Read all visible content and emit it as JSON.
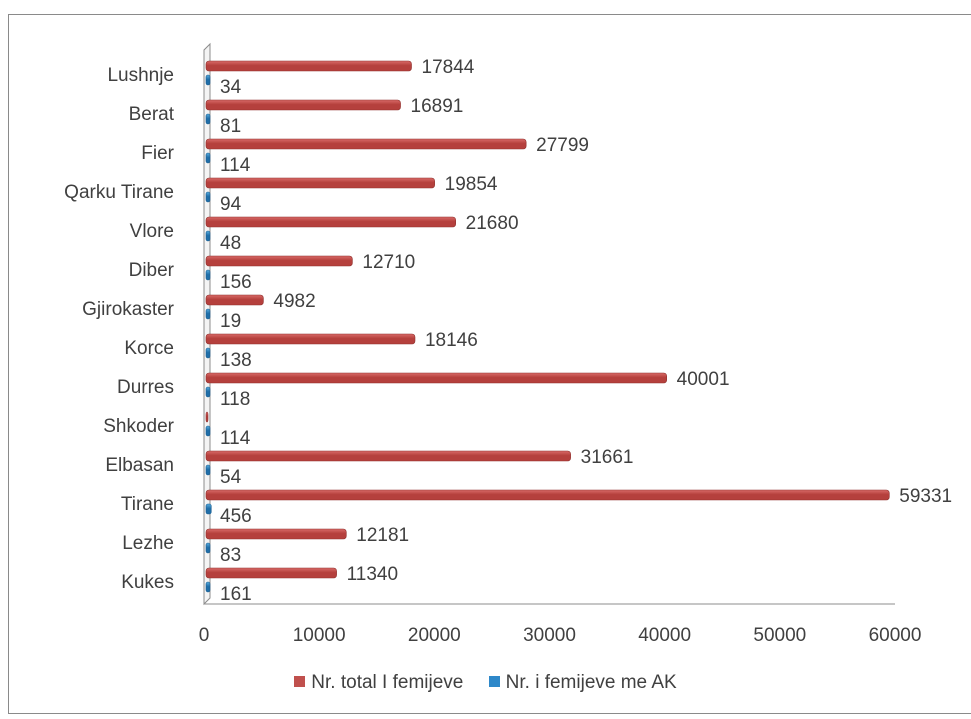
{
  "chart_data": {
    "type": "bar",
    "orientation": "horizontal",
    "categories": [
      "Lushnje",
      "Berat",
      "Fier",
      "Qarku Tirane",
      "Vlore",
      "Diber",
      "Gjirokaster",
      "Korce",
      "Durres",
      "Shkoder",
      "Elbasan",
      "Tirane",
      "Lezhe",
      "Kukes"
    ],
    "series": [
      {
        "name": "Nr. total I femijeve",
        "color": "#c0504d",
        "values": [
          17844,
          16891,
          27799,
          19854,
          21680,
          12710,
          4982,
          18146,
          40001,
          null,
          31661,
          59331,
          12181,
          11340
        ],
        "labels": [
          "17844",
          "16891",
          "27799",
          "19854",
          "21680",
          "12710",
          "4982",
          "18146",
          "40001",
          "",
          "31661",
          "59331",
          "12181",
          "11340"
        ]
      },
      {
        "name": "Nr. i femijeve me AK",
        "color": "#2e88c9",
        "values": [
          34,
          81,
          114,
          94,
          48,
          156,
          19,
          138,
          118,
          114,
          54,
          456,
          83,
          161
        ],
        "labels": [
          "34",
          "81",
          "114",
          "94",
          "48",
          "156",
          "19",
          "138",
          "118",
          "114",
          "54",
          "456",
          "83",
          "161"
        ]
      }
    ],
    "xlim": [
      0,
      60000
    ],
    "xticks": [
      "0",
      "10000",
      "20000",
      "30000",
      "40000",
      "50000",
      "60000"
    ],
    "grid": false,
    "legend": "bottom"
  }
}
